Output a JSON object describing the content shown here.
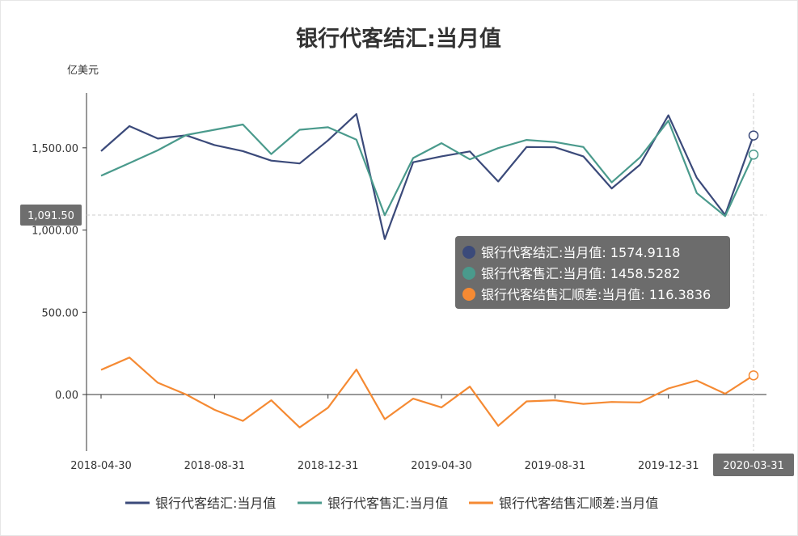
{
  "chart_data": {
    "type": "line",
    "title": "银行代客结汇:当月值",
    "ylabel": "亿美元",
    "ylim": [
      -350,
      1850
    ],
    "y_ticks": [
      0,
      500,
      1000,
      1500
    ],
    "y_tick_labels": [
      "0.00",
      "500.00",
      "1,000.00",
      "1,500.00"
    ],
    "x": [
      "2018-04-30",
      "2018-05-31",
      "2018-06-30",
      "2018-07-31",
      "2018-08-31",
      "2018-09-30",
      "2018-10-31",
      "2018-11-30",
      "2018-12-31",
      "2019-01-31",
      "2019-02-28",
      "2019-03-31",
      "2019-04-30",
      "2019-05-31",
      "2019-06-30",
      "2019-07-31",
      "2019-08-31",
      "2019-09-30",
      "2019-10-31",
      "2019-11-30",
      "2019-12-31",
      "2020-01-31",
      "2020-02-29",
      "2020-03-31"
    ],
    "x_tick_labels": [
      "2018-04-30",
      "2018-08-31",
      "2018-12-31",
      "2019-04-30",
      "2019-08-31",
      "2019-12-31"
    ],
    "grid": false,
    "legend_position": "bottom",
    "series": [
      {
        "name": "银行代客结汇:当月值",
        "color": "#3b4a7a",
        "values": [
          1480,
          1632,
          1556,
          1576,
          1517,
          1480,
          1422,
          1405,
          1545,
          1705,
          945,
          1412,
          1448,
          1478,
          1295,
          1505,
          1503,
          1448,
          1253,
          1398,
          1698,
          1318,
          1092,
          1574.9118
        ]
      },
      {
        "name": "银行代客售汇:当月值",
        "color": "#4a9a8c",
        "values": [
          1330,
          1407,
          1485,
          1578,
          1610,
          1642,
          1462,
          1610,
          1625,
          1550,
          1090,
          1438,
          1528,
          1430,
          1498,
          1548,
          1535,
          1505,
          1290,
          1442,
          1665,
          1225,
          1085,
          1458.5282
        ]
      },
      {
        "name": "银行代客结售汇顺差:当月值",
        "color": "#f58a33",
        "values": [
          150,
          225,
          72,
          0,
          -93,
          -160,
          -35,
          -200,
          -80,
          152,
          -150,
          -25,
          -78,
          48,
          -190,
          -42,
          -35,
          -57,
          -45,
          -48,
          37,
          85,
          5,
          116.3836
        ]
      }
    ],
    "axis_pointer": {
      "y_label": "1,091.50",
      "y_value": 1091.5,
      "x_label": "2020-03-31"
    },
    "tooltip": {
      "rows": [
        {
          "name": "银行代客结汇:当月值",
          "value": "1574.9118",
          "color": "#3b4a7a"
        },
        {
          "name": "银行代客售汇:当月值",
          "value": "1458.5282",
          "color": "#4a9a8c"
        },
        {
          "name": "银行代客结售汇顺差:当月值",
          "value": "116.3836",
          "color": "#f58a33"
        }
      ]
    }
  }
}
